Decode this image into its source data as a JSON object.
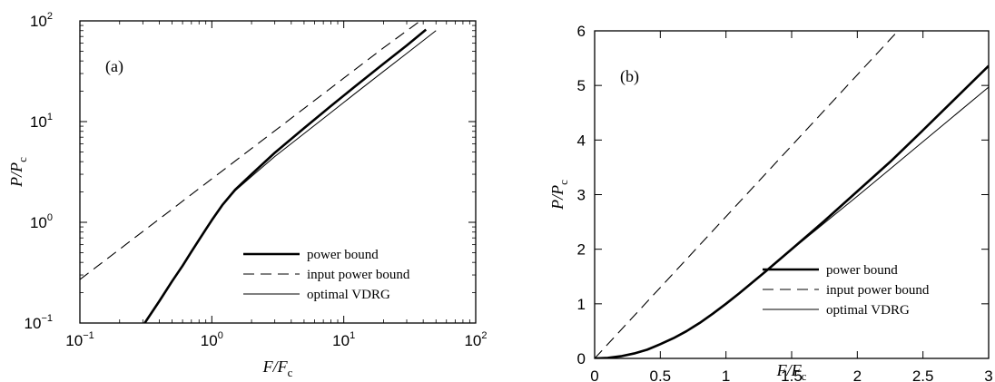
{
  "chart_data": [
    {
      "type": "line",
      "panel_label": "(a)",
      "xlabel": "F/F_c",
      "ylabel": "P/P_c",
      "xscale": "log",
      "yscale": "log",
      "xlim": [
        0.1,
        100
      ],
      "ylim": [
        0.1,
        100
      ],
      "x_ticks": [
        0.1,
        1,
        10,
        100
      ],
      "y_ticks": [
        0.1,
        1,
        10,
        100
      ],
      "x_tick_labels": [
        {
          "base": "10",
          "exp": "−1"
        },
        {
          "base": "10",
          "exp": "0"
        },
        {
          "base": "10",
          "exp": "1"
        },
        {
          "base": "10",
          "exp": "2"
        }
      ],
      "y_tick_labels": [
        {
          "base": "10",
          "exp": "−1"
        },
        {
          "base": "10",
          "exp": "0"
        },
        {
          "base": "10",
          "exp": "1"
        },
        {
          "base": "10",
          "exp": "2"
        }
      ],
      "legend_position": "bottom-right",
      "grid": false,
      "series": [
        {
          "name": "power bound",
          "style": "thick-solid",
          "x": [
            0.31,
            0.4,
            0.5,
            0.6,
            0.7,
            0.8,
            0.9,
            1.0,
            1.2,
            1.5,
            2.0,
            3.0,
            5.0,
            8.0,
            12.0,
            20.0,
            30.0,
            42.0
          ],
          "y": [
            0.1,
            0.165,
            0.26,
            0.37,
            0.51,
            0.67,
            0.85,
            1.05,
            1.48,
            2.1,
            3.0,
            4.9,
            8.6,
            14.3,
            22.0,
            37.5,
            57.0,
            82.0
          ]
        },
        {
          "name": "input power bound",
          "style": "dashed",
          "x": [
            0.1,
            0.2,
            0.5,
            1.0,
            2.0,
            5.0,
            10.0,
            20.0,
            38.0
          ],
          "y": [
            0.27,
            0.54,
            1.35,
            2.7,
            5.4,
            13.5,
            27.0,
            54.0,
            100.0
          ]
        },
        {
          "name": "optimal VDRG",
          "style": "thin-solid",
          "x": [
            0.31,
            0.4,
            0.5,
            0.6,
            0.7,
            0.8,
            0.9,
            1.0,
            1.2,
            1.5,
            2.0,
            3.0,
            5.0,
            8.0,
            12.0,
            20.0,
            30.0,
            50.0
          ],
          "y": [
            0.1,
            0.165,
            0.26,
            0.37,
            0.51,
            0.67,
            0.85,
            1.05,
            1.47,
            2.05,
            2.85,
            4.5,
            7.6,
            12.3,
            18.7,
            31.5,
            47.5,
            80.0
          ]
        }
      ]
    },
    {
      "type": "line",
      "panel_label": "(b)",
      "xlabel": "F/F_c",
      "ylabel": "P/P_c",
      "xscale": "linear",
      "yscale": "linear",
      "xlim": [
        0,
        3
      ],
      "ylim": [
        0,
        6
      ],
      "x_ticks": [
        0,
        0.5,
        1,
        1.5,
        2,
        2.5,
        3
      ],
      "y_ticks": [
        0,
        1,
        2,
        3,
        4,
        5,
        6
      ],
      "x_tick_labels": [
        "0",
        "0.5",
        "1",
        "1.5",
        "2",
        "2.5",
        "3"
      ],
      "y_tick_labels": [
        "0",
        "1",
        "2",
        "3",
        "4",
        "5",
        "6"
      ],
      "legend_position": "bottom-right",
      "grid": false,
      "series": [
        {
          "name": "power bound",
          "style": "thick-solid",
          "x": [
            0,
            0.1,
            0.2,
            0.3,
            0.4,
            0.5,
            0.6,
            0.7,
            0.8,
            0.9,
            1.0,
            1.1,
            1.2,
            1.3,
            1.5,
            1.75,
            2.0,
            2.25,
            2.5,
            2.75,
            3.0
          ],
          "y": [
            0,
            0.01,
            0.04,
            0.09,
            0.16,
            0.26,
            0.37,
            0.5,
            0.65,
            0.82,
            1.0,
            1.19,
            1.39,
            1.59,
            2.0,
            2.52,
            3.06,
            3.6,
            4.18,
            4.77,
            5.36
          ]
        },
        {
          "name": "input power bound",
          "style": "dashed",
          "x": [
            0,
            2.31
          ],
          "y": [
            0,
            6
          ]
        },
        {
          "name": "optimal VDRG",
          "style": "thin-solid",
          "x": [
            0,
            0.1,
            0.2,
            0.3,
            0.4,
            0.5,
            0.6,
            0.7,
            0.8,
            0.9,
            1.0,
            1.1,
            1.2,
            1.3,
            1.5,
            1.75,
            2.0,
            2.25,
            2.5,
            2.75,
            3.0
          ],
          "y": [
            0,
            0.01,
            0.04,
            0.09,
            0.16,
            0.26,
            0.37,
            0.5,
            0.65,
            0.82,
            1.0,
            1.19,
            1.39,
            1.59,
            1.99,
            2.48,
            2.97,
            3.47,
            3.97,
            4.47,
            4.97
          ]
        }
      ]
    }
  ]
}
